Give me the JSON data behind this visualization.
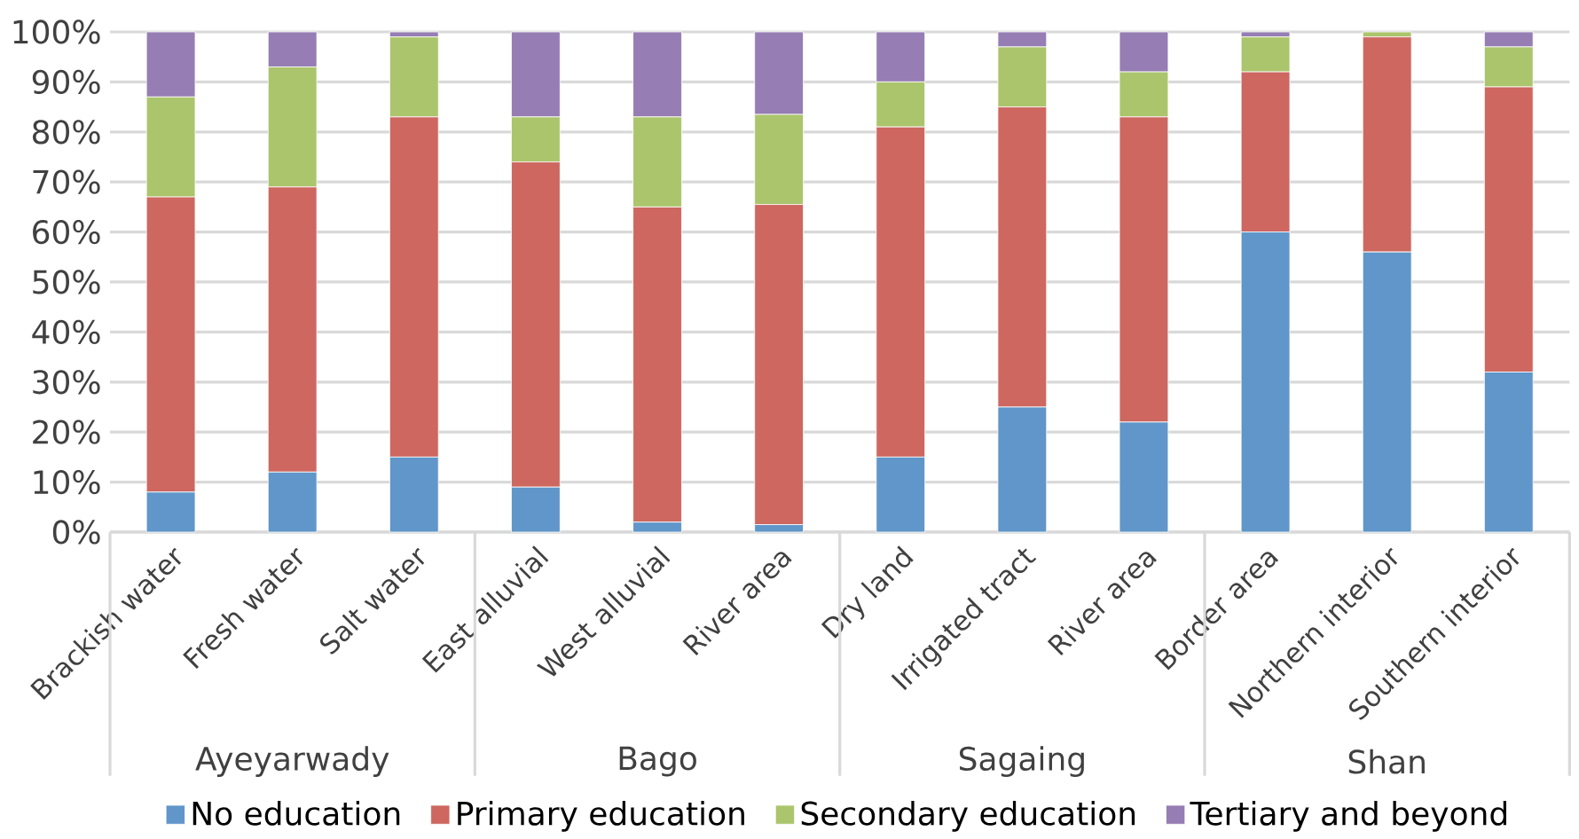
{
  "chart_data": {
    "type": "bar",
    "stacked": true,
    "categories": [
      "Brackish water",
      "Fresh water",
      "Salt water",
      "East alluvial",
      "West alluvial",
      "River area",
      "Dry land",
      "Irrigated tract",
      "River area",
      "Border area",
      "Northern interior",
      "Southern interior"
    ],
    "series": [
      {
        "name": "No education",
        "color": "#6096c9",
        "values": [
          8,
          12,
          15,
          9,
          2,
          1.5,
          15,
          25,
          22,
          60,
          56,
          32
        ]
      },
      {
        "name": "Primary education",
        "color": "#cd6760",
        "values": [
          59,
          57,
          68,
          65,
          63,
          64,
          66,
          60,
          61,
          32,
          43,
          57
        ]
      },
      {
        "name": "Secondary education",
        "color": "#abc56c",
        "values": [
          20,
          24,
          16,
          9,
          18,
          18,
          9,
          12,
          9,
          7,
          1,
          8
        ]
      },
      {
        "name": "Tertiary and beyond",
        "color": "#967db3",
        "values": [
          13,
          7,
          1,
          17,
          17,
          16.5,
          10,
          3,
          8,
          1,
          0,
          3
        ]
      }
    ],
    "ylim": [
      0,
      100
    ],
    "yticks": [
      {
        "value": 0,
        "label": "0%"
      },
      {
        "value": 10,
        "label": "10%"
      },
      {
        "value": 20,
        "label": "20%"
      },
      {
        "value": 30,
        "label": "30%"
      },
      {
        "value": 40,
        "label": "40%"
      },
      {
        "value": 50,
        "label": "50%"
      },
      {
        "value": 60,
        "label": "60%"
      },
      {
        "value": 70,
        "label": "70%"
      },
      {
        "value": 80,
        "label": "80%"
      },
      {
        "value": 90,
        "label": "90%"
      },
      {
        "value": 100,
        "label": "100%"
      }
    ],
    "annotations": [
      "Ayeyarwady",
      "Bago",
      "Sagaing",
      "Shan"
    ],
    "grid": "y",
    "legend": "bottom"
  }
}
